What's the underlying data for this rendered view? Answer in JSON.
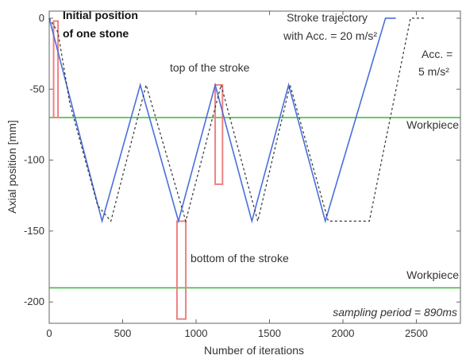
{
  "chart_data": {
    "type": "line",
    "xlabel": "Number of iterations",
    "ylabel": "Axial position [mm]",
    "xlim": [
      0,
      2800
    ],
    "ylim": [
      -215,
      5
    ],
    "xticks": [
      0,
      500,
      1000,
      1500,
      2000,
      2500
    ],
    "yticks": [
      0,
      -50,
      -100,
      -150,
      -200
    ],
    "series": [
      {
        "name": "Stroke trajectory with Acc. = 20 m/s²",
        "style": "solid",
        "color": "#4a6fd9",
        "x": [
          0,
          360,
          620,
          880,
          1130,
          1380,
          1630,
          1880,
          2290,
          2360
        ],
        "y": [
          0,
          -143,
          -47,
          -143,
          -47,
          -143,
          -47,
          -143,
          0,
          0
        ]
      },
      {
        "name": "Acc. = 5 m/s²",
        "style": "dashed",
        "color": "#333333",
        "x": [
          0,
          60,
          140,
          330,
          420,
          660,
          930,
          1170,
          1420,
          1640,
          1900,
          2180,
          2460,
          2550
        ],
        "y": [
          0,
          -10,
          -60,
          -132,
          -143,
          -47,
          -143,
          -47,
          -143,
          -47,
          -143,
          -143,
          0,
          0
        ]
      }
    ],
    "hlines": [
      {
        "y": -70,
        "label": "Workpiece",
        "color": "#33bb33"
      },
      {
        "y": -190,
        "label": "Workpiece",
        "color": "#33bb33"
      }
    ],
    "highlight_boxes": [
      {
        "x0": 30,
        "x1": 60,
        "y0": -2,
        "y1": -70,
        "color": "#f08080"
      },
      {
        "x0": 1130,
        "x1": 1180,
        "y0": -47,
        "y1": -117,
        "color": "#f08080"
      },
      {
        "x0": 870,
        "x1": 930,
        "y0": -143,
        "y1": -212,
        "color": "#f08080"
      }
    ],
    "annotations": {
      "initial_position_line1": "Initial position",
      "initial_position_line2": "of one stone",
      "top_of_stroke": "top of the stroke",
      "bottom_of_stroke": "bottom of the stroke",
      "stroke_trajectory_line1": "Stroke trajectory",
      "stroke_trajectory_line2": "with Acc. = 20 m/s²",
      "acc5_line1": "Acc. =",
      "acc5_line2": "5 m/s²",
      "sampling_period": "sampling period = 890ms"
    },
    "grid": false,
    "legend": "none"
  }
}
